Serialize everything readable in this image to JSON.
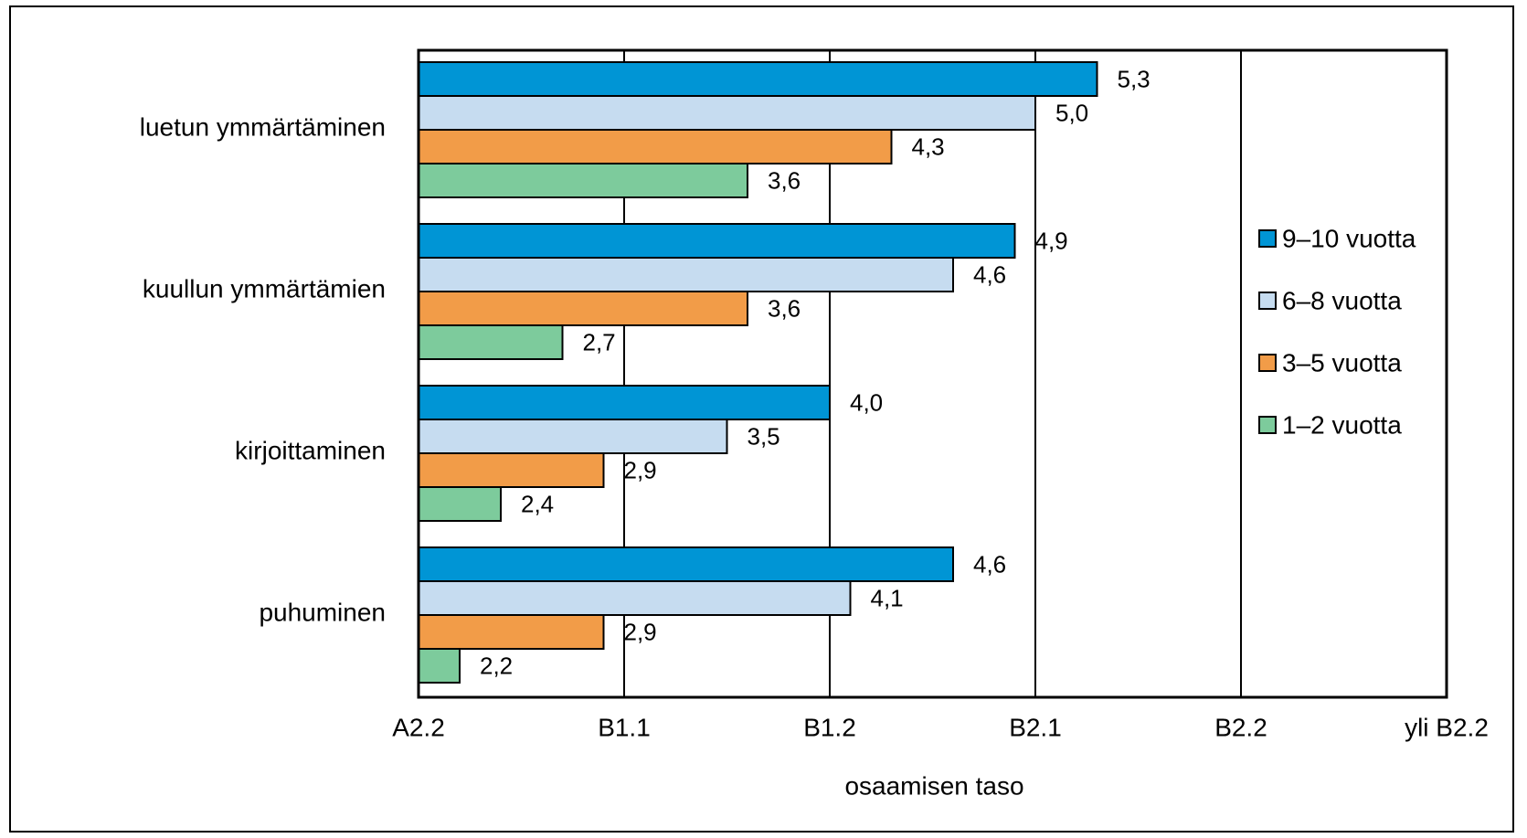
{
  "chart_data": {
    "type": "bar",
    "orientation": "horizontal",
    "categories": [
      "luetun ymmärtäminen",
      "kuullun ymmärtämien",
      "kirjoittaminen",
      "puhuminen"
    ],
    "series": [
      {
        "name": "9–10 vuotta",
        "color": "#0095D5",
        "values": [
          5.3,
          4.9,
          4.0,
          4.6
        ],
        "labels": [
          "5,3",
          "4,9",
          "4,0",
          "4,6"
        ]
      },
      {
        "name": "6–8 vuotta",
        "color": "#C6DCF0",
        "values": [
          5.0,
          4.6,
          3.5,
          4.1
        ],
        "labels": [
          "5,0",
          "4,6",
          "3,5",
          "4,1"
        ]
      },
      {
        "name": "3–5 vuotta",
        "color": "#F29C48",
        "values": [
          4.3,
          3.6,
          2.9,
          2.9
        ],
        "labels": [
          "4,3",
          "3,6",
          "2,9",
          "2,9"
        ]
      },
      {
        "name": "1–2 vuotta",
        "color": "#7DCB9C",
        "values": [
          3.6,
          2.7,
          2.4,
          2.2
        ],
        "labels": [
          "3,6",
          "2,7",
          "2,4",
          "2,2"
        ]
      }
    ],
    "xlabel": "osaamisen taso",
    "xlim": [
      2,
      7
    ],
    "xticks": [
      2,
      3,
      4,
      5,
      6,
      7
    ],
    "xticklabels": [
      "A2.2",
      "B1.1",
      "B1.2",
      "B2.1",
      "B2.2",
      "yli B2.2"
    ],
    "grid": true,
    "legend_position": "right"
  }
}
